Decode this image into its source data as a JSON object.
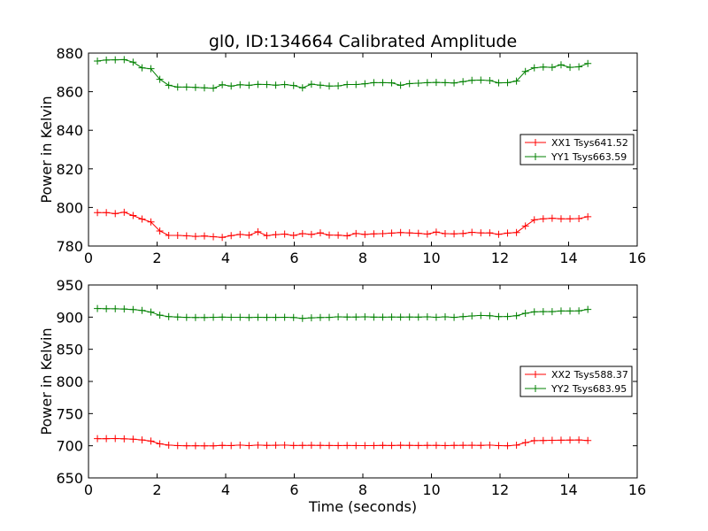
{
  "chart_data": [
    {
      "type": "line",
      "title": "gl0, ID:134664 Calibrated Amplitude",
      "xlabel": "",
      "ylabel": "Power in Kelvin",
      "xlim": [
        0,
        16
      ],
      "ylim": [
        780,
        880
      ],
      "xticks": [
        "0",
        "2",
        "4",
        "6",
        "8",
        "10",
        "12",
        "14",
        "16"
      ],
      "yticks": [
        "780",
        "800",
        "820",
        "840",
        "860",
        "880"
      ],
      "legend_position": "center-right",
      "x": [
        0.26,
        0.52,
        0.78,
        1.04,
        1.3,
        1.56,
        1.82,
        2.08,
        2.34,
        2.6,
        2.86,
        3.12,
        3.38,
        3.64,
        3.9,
        4.16,
        4.42,
        4.68,
        4.94,
        5.2,
        5.46,
        5.72,
        5.98,
        6.24,
        6.5,
        6.76,
        7.02,
        7.28,
        7.54,
        7.8,
        8.06,
        8.32,
        8.58,
        8.84,
        9.1,
        9.36,
        9.62,
        9.88,
        10.14,
        10.4,
        10.66,
        10.92,
        11.18,
        11.44,
        11.7,
        11.96,
        12.22,
        12.48,
        12.74,
        13.0,
        13.26,
        13.52,
        13.78,
        14.04,
        14.3,
        14.56
      ],
      "series": [
        {
          "name": "XX1 Tsys641.52",
          "color": "#ff0000",
          "values": [
            797.3,
            797.3,
            796.8,
            797.5,
            795.8,
            794.0,
            792.5,
            787.8,
            785.5,
            785.5,
            785.3,
            785.0,
            785.2,
            784.8,
            784.5,
            785.4,
            786.0,
            785.6,
            787.4,
            785.4,
            785.9,
            786.2,
            785.5,
            786.4,
            786.0,
            786.8,
            785.7,
            785.6,
            785.3,
            786.5,
            786.0,
            786.3,
            786.4,
            786.7,
            787.0,
            786.8,
            786.6,
            786.2,
            787.2,
            786.4,
            786.3,
            786.5,
            787.1,
            786.8,
            786.8,
            786.1,
            786.7,
            787.0,
            790.4,
            793.6,
            794.1,
            794.4,
            794.1,
            794.1,
            794.2,
            795.2
          ]
        },
        {
          "name": "YY1 Tsys663.59",
          "color": "#008000",
          "values": [
            875.9,
            876.4,
            876.5,
            876.6,
            875.3,
            872.4,
            871.9,
            866.4,
            863.3,
            862.4,
            862.4,
            862.2,
            862.0,
            861.8,
            863.6,
            862.9,
            863.6,
            863.3,
            863.8,
            863.7,
            863.4,
            863.7,
            863.2,
            862.0,
            863.9,
            863.4,
            862.9,
            863.0,
            863.7,
            863.7,
            864.1,
            864.7,
            864.7,
            864.6,
            863.3,
            864.2,
            864.4,
            864.7,
            864.8,
            864.7,
            864.5,
            865.2,
            865.9,
            866.0,
            865.8,
            864.6,
            864.7,
            865.5,
            870.5,
            872.4,
            872.8,
            872.6,
            873.9,
            872.6,
            872.9,
            874.6
          ]
        }
      ]
    },
    {
      "type": "line",
      "title": "",
      "xlabel": "Time (seconds)",
      "ylabel": "Power in Kelvin",
      "xlim": [
        0,
        16
      ],
      "ylim": [
        650,
        950
      ],
      "xticks": [
        "0",
        "2",
        "4",
        "6",
        "8",
        "10",
        "12",
        "14",
        "16"
      ],
      "yticks": [
        "650",
        "700",
        "750",
        "800",
        "850",
        "900",
        "950"
      ],
      "legend_position": "center-right",
      "x": [
        0.26,
        0.52,
        0.78,
        1.04,
        1.3,
        1.56,
        1.82,
        2.08,
        2.34,
        2.6,
        2.86,
        3.12,
        3.38,
        3.64,
        3.9,
        4.16,
        4.42,
        4.68,
        4.94,
        5.2,
        5.46,
        5.72,
        5.98,
        6.24,
        6.5,
        6.76,
        7.02,
        7.28,
        7.54,
        7.8,
        8.06,
        8.32,
        8.58,
        8.84,
        9.1,
        9.36,
        9.62,
        9.88,
        10.14,
        10.4,
        10.66,
        10.92,
        11.18,
        11.44,
        11.7,
        11.96,
        12.22,
        12.48,
        12.74,
        13.0,
        13.26,
        13.52,
        13.78,
        14.04,
        14.3,
        14.56
      ],
      "series": [
        {
          "name": "XX2 Tsys588.37",
          "color": "#ff0000",
          "values": [
            711.0,
            711.0,
            711.2,
            710.8,
            710.2,
            709.0,
            707.3,
            703.0,
            701.0,
            700.2,
            700.0,
            700.0,
            699.8,
            699.8,
            700.5,
            700.3,
            701.0,
            700.2,
            701.0,
            700.6,
            700.8,
            701.0,
            700.4,
            700.6,
            700.7,
            700.5,
            700.4,
            700.3,
            700.4,
            700.3,
            700.2,
            700.3,
            700.6,
            700.4,
            700.8,
            700.5,
            700.4,
            700.5,
            700.6,
            700.3,
            700.5,
            700.7,
            700.8,
            700.6,
            701.0,
            700.2,
            700.0,
            701.0,
            704.8,
            708.0,
            708.2,
            708.5,
            708.6,
            708.8,
            709.0,
            708.2
          ]
        },
        {
          "name": "YY2 Tsys683.95",
          "color": "#008000",
          "values": [
            913.4,
            913.1,
            913.0,
            912.6,
            911.8,
            910.4,
            907.8,
            903.0,
            900.8,
            900.2,
            899.6,
            899.5,
            899.4,
            899.7,
            900.0,
            899.8,
            899.8,
            899.5,
            899.8,
            899.6,
            899.6,
            899.8,
            899.5,
            898.0,
            898.9,
            899.4,
            899.6,
            900.4,
            900.2,
            900.1,
            900.4,
            900.0,
            899.9,
            900.1,
            900.0,
            900.2,
            900.0,
            900.4,
            899.8,
            900.5,
            899.6,
            900.8,
            901.8,
            902.6,
            902.2,
            900.8,
            901.0,
            902.2,
            906.0,
            908.2,
            908.6,
            908.6,
            909.6,
            909.6,
            909.8,
            912.0
          ]
        }
      ]
    }
  ]
}
